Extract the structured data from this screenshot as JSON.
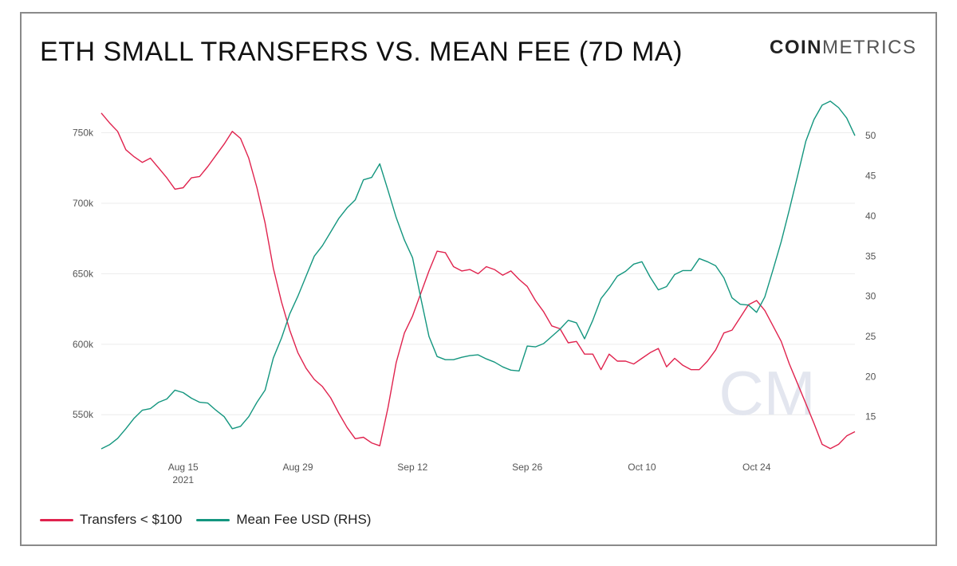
{
  "title": "ETH SMALL TRANSFERS VS. MEAN FEE (7D MA)",
  "logo": {
    "bold": "COIN",
    "light": "METRICS"
  },
  "legend": [
    {
      "label": "Transfers < $100",
      "color": "#e0234e"
    },
    {
      "label": "Mean Fee USD (RHS)",
      "color": "#14967f"
    }
  ],
  "chart_data": {
    "type": "line",
    "grid": true,
    "x_ticks": [
      {
        "label": "Aug 15",
        "sublabel": "2021",
        "date": "2021-08-15"
      },
      {
        "label": "Aug 29",
        "date": "2021-08-29"
      },
      {
        "label": "Sep 12",
        "date": "2021-09-12"
      },
      {
        "label": "Sep 26",
        "date": "2021-09-26"
      },
      {
        "label": "Oct 10",
        "date": "2021-10-10"
      },
      {
        "label": "Oct 24",
        "date": "2021-10-24"
      }
    ],
    "x_range": [
      "2021-08-05",
      "2021-11-05"
    ],
    "y_left": {
      "ticks": [
        "550k",
        "600k",
        "650k",
        "700k",
        "750k"
      ],
      "tick_values": [
        550000,
        600000,
        650000,
        700000,
        750000
      ],
      "range": [
        523000,
        765000
      ]
    },
    "y_right": {
      "ticks": [
        "15",
        "20",
        "25",
        "30",
        "35",
        "40",
        "45",
        "50"
      ],
      "tick_values": [
        15,
        20,
        25,
        30,
        35,
        40,
        45,
        50
      ],
      "range": [
        10.5,
        53
      ]
    },
    "series": [
      {
        "name": "Transfers < $100",
        "axis": "left",
        "color": "#e0234e",
        "x": [
          "2021-08-05",
          "2021-08-06",
          "2021-08-07",
          "2021-08-08",
          "2021-08-09",
          "2021-08-10",
          "2021-08-11",
          "2021-08-12",
          "2021-08-13",
          "2021-08-14",
          "2021-08-15",
          "2021-08-16",
          "2021-08-17",
          "2021-08-18",
          "2021-08-19",
          "2021-08-20",
          "2021-08-21",
          "2021-08-22",
          "2021-08-23",
          "2021-08-24",
          "2021-08-25",
          "2021-08-26",
          "2021-08-27",
          "2021-08-28",
          "2021-08-29",
          "2021-08-30",
          "2021-08-31",
          "2021-09-01",
          "2021-09-02",
          "2021-09-03",
          "2021-09-04",
          "2021-09-05",
          "2021-09-06",
          "2021-09-07",
          "2021-09-08",
          "2021-09-09",
          "2021-09-10",
          "2021-09-11",
          "2021-09-12",
          "2021-09-13",
          "2021-09-14",
          "2021-09-15",
          "2021-09-16",
          "2021-09-17",
          "2021-09-18",
          "2021-09-19",
          "2021-09-20",
          "2021-09-21",
          "2021-09-22",
          "2021-09-23",
          "2021-09-24",
          "2021-09-25",
          "2021-09-26",
          "2021-09-27",
          "2021-09-28",
          "2021-09-29",
          "2021-09-30",
          "2021-10-01",
          "2021-10-02",
          "2021-10-03",
          "2021-10-04",
          "2021-10-05",
          "2021-10-06",
          "2021-10-07",
          "2021-10-08",
          "2021-10-09",
          "2021-10-10",
          "2021-10-11",
          "2021-10-12",
          "2021-10-13",
          "2021-10-14",
          "2021-10-15",
          "2021-10-16",
          "2021-10-17",
          "2021-10-18",
          "2021-10-19",
          "2021-10-20",
          "2021-10-21",
          "2021-10-22",
          "2021-10-23",
          "2021-10-24",
          "2021-10-25",
          "2021-10-26",
          "2021-10-27",
          "2021-10-28",
          "2021-10-29",
          "2021-10-30",
          "2021-10-31",
          "2021-11-01",
          "2021-11-02",
          "2021-11-03",
          "2021-11-04",
          "2021-11-05"
        ],
        "values": [
          764000,
          757000,
          751000,
          738000,
          733000,
          729000,
          732000,
          725000,
          718000,
          710000,
          711000,
          718000,
          719000,
          726000,
          734000,
          742000,
          751000,
          746000,
          732000,
          711000,
          686000,
          654000,
          630000,
          610000,
          594000,
          583000,
          575000,
          570000,
          562000,
          551000,
          541000,
          533000,
          534000,
          530000,
          528000,
          555000,
          587000,
          608000,
          620000,
          636000,
          652000,
          666000,
          665000,
          655000,
          652000,
          653000,
          650000,
          655000,
          653000,
          649000,
          652000,
          646000,
          641000,
          631000,
          623000,
          613000,
          611000,
          601000,
          602000,
          593000,
          593000,
          582000,
          593000,
          588000,
          588000,
          586000,
          590000,
          594000,
          597000,
          584000,
          590000,
          585000,
          582000,
          582000,
          588000,
          596000,
          608000,
          610000,
          619000,
          628000,
          631000,
          624000,
          613000,
          602000,
          586000,
          572000,
          558000,
          544000,
          529000,
          526000,
          529000,
          535000,
          538000
        ]
      },
      {
        "name": "Mean Fee USD (RHS)",
        "axis": "right",
        "color": "#14967f",
        "x": [
          "2021-08-05",
          "2021-08-06",
          "2021-08-07",
          "2021-08-08",
          "2021-08-09",
          "2021-08-10",
          "2021-08-11",
          "2021-08-12",
          "2021-08-13",
          "2021-08-14",
          "2021-08-15",
          "2021-08-16",
          "2021-08-17",
          "2021-08-18",
          "2021-08-19",
          "2021-08-20",
          "2021-08-21",
          "2021-08-22",
          "2021-08-23",
          "2021-08-24",
          "2021-08-25",
          "2021-08-26",
          "2021-08-27",
          "2021-08-28",
          "2021-08-29",
          "2021-08-30",
          "2021-08-31",
          "2021-09-01",
          "2021-09-02",
          "2021-09-03",
          "2021-09-04",
          "2021-09-05",
          "2021-09-06",
          "2021-09-07",
          "2021-09-08",
          "2021-09-09",
          "2021-09-10",
          "2021-09-11",
          "2021-09-12",
          "2021-09-13",
          "2021-09-14",
          "2021-09-15",
          "2021-09-16",
          "2021-09-17",
          "2021-09-18",
          "2021-09-19",
          "2021-09-20",
          "2021-09-21",
          "2021-09-22",
          "2021-09-23",
          "2021-09-24",
          "2021-09-25",
          "2021-09-26",
          "2021-09-27",
          "2021-09-28",
          "2021-09-29",
          "2021-09-30",
          "2021-10-01",
          "2021-10-02",
          "2021-10-03",
          "2021-10-04",
          "2021-10-05",
          "2021-10-06",
          "2021-10-07",
          "2021-10-08",
          "2021-10-09",
          "2021-10-10",
          "2021-10-11",
          "2021-10-12",
          "2021-10-13",
          "2021-10-14",
          "2021-10-15",
          "2021-10-16",
          "2021-10-17",
          "2021-10-18",
          "2021-10-19",
          "2021-10-20",
          "2021-10-21",
          "2021-10-22",
          "2021-10-23",
          "2021-10-24",
          "2021-10-25",
          "2021-10-26",
          "2021-10-27",
          "2021-10-28",
          "2021-10-29",
          "2021-10-30",
          "2021-10-31",
          "2021-11-01",
          "2021-11-02",
          "2021-11-03",
          "2021-11-04",
          "2021-11-05"
        ],
        "values": [
          11.0,
          11.5,
          12.3,
          13.5,
          14.8,
          15.8,
          16.0,
          16.8,
          17.2,
          18.3,
          18.0,
          17.3,
          16.8,
          16.7,
          15.8,
          15.0,
          13.5,
          13.8,
          15.0,
          16.8,
          18.3,
          22.3,
          24.8,
          27.8,
          30.0,
          32.5,
          35.0,
          36.3,
          38.0,
          39.7,
          41.0,
          42.0,
          44.5,
          44.8,
          46.5,
          43.2,
          39.8,
          37.0,
          34.8,
          29.8,
          25.0,
          22.5,
          22.1,
          22.1,
          22.4,
          22.6,
          22.7,
          22.2,
          21.8,
          21.2,
          20.8,
          20.7,
          23.8,
          23.7,
          24.1,
          25.0,
          25.9,
          27.0,
          26.7,
          24.7,
          27.0,
          29.7,
          31.0,
          32.5,
          33.1,
          34.0,
          34.3,
          32.4,
          30.8,
          31.2,
          32.7,
          33.2,
          33.2,
          34.7,
          34.3,
          33.8,
          32.3,
          29.8,
          29.0,
          28.9,
          28.0,
          29.9,
          33.3,
          36.8,
          40.8,
          45.0,
          49.3,
          52.0,
          53.8,
          54.3,
          53.5,
          52.2,
          50.0
        ]
      }
    ]
  }
}
